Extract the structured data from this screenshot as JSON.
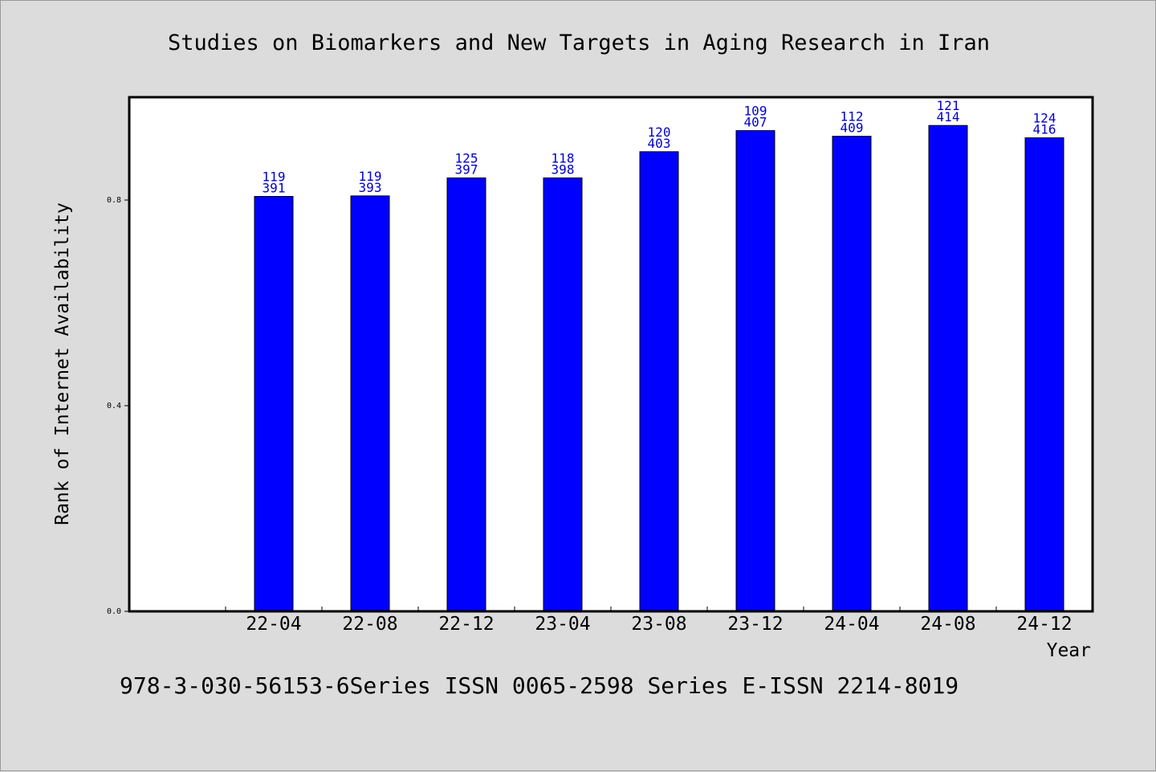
{
  "chart_data": {
    "type": "bar",
    "title": "Studies on Biomarkers and New Targets in Aging Research in Iran",
    "xlabel": "Year",
    "ylabel": "Rank of Internet Availability",
    "categories": [
      "22-04",
      "22-08",
      "22-12",
      "23-04",
      "23-08",
      "23-12",
      "24-04",
      "24-08",
      "24-12"
    ],
    "values": [
      0.807,
      0.808,
      0.843,
      0.843,
      0.894,
      0.935,
      0.924,
      0.945,
      0.921
    ],
    "label_top": [
      "119",
      "119",
      "125",
      "118",
      "120",
      "109",
      "112",
      "121",
      "124"
    ],
    "label_bottom": [
      "391",
      "393",
      "397",
      "398",
      "403",
      "407",
      "409",
      "414",
      "416"
    ],
    "yticks": [
      0.0,
      0.4,
      0.8
    ],
    "ytick_labels": [
      "0.0",
      "0.4",
      "0.8"
    ],
    "ylim": [
      0.0,
      1.0
    ],
    "grid": false,
    "bar_color": "#0000ff",
    "label_color": "#0000cc"
  },
  "footer": "978-3-030-56153-6Series ISSN 0065-2598 Series E-ISSN 2214-8019"
}
